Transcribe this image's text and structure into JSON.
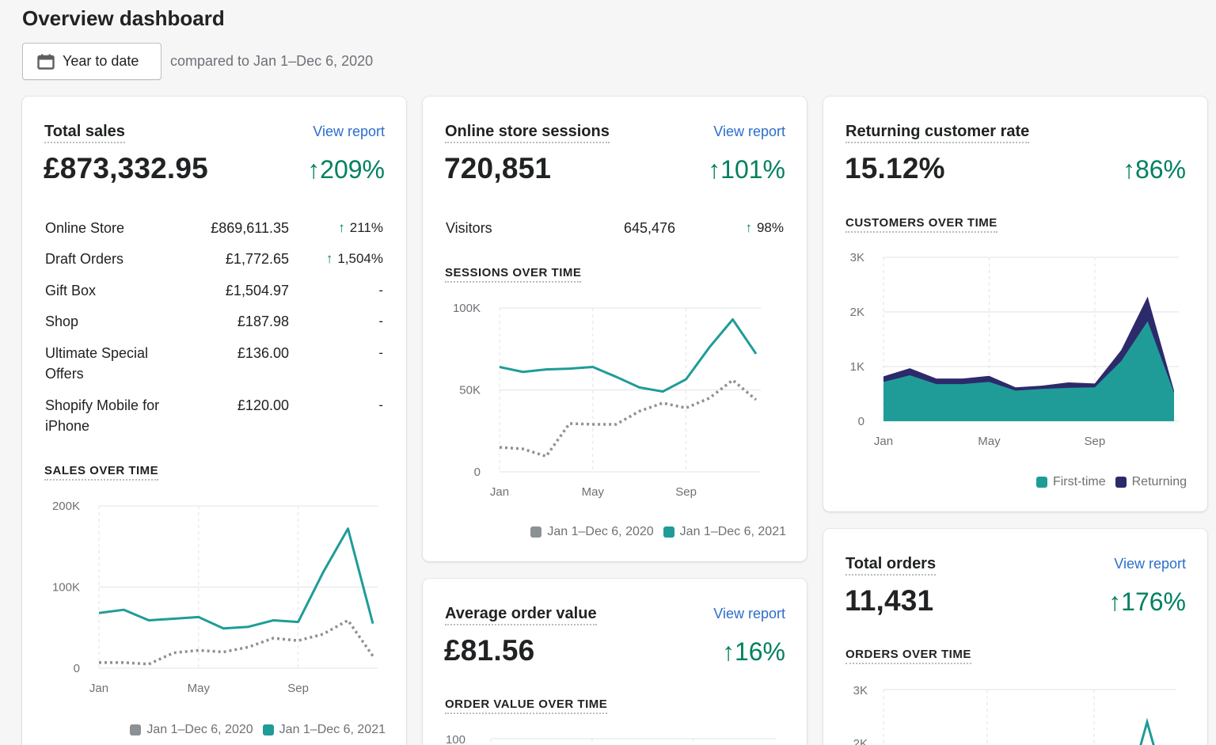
{
  "header": {
    "title": "Overview dashboard",
    "date_button": "Year to date",
    "compare": "compared to Jan 1–Dec 6, 2020"
  },
  "colors": {
    "current": "#1f9c98",
    "previous": "#8c9196",
    "returning": "#2c2a6b",
    "positive": "#008060",
    "link": "#2c6ecb"
  },
  "total_sales": {
    "title": "Total sales",
    "link": "View report",
    "value": "£873,332.95",
    "delta": "↑209%",
    "rows": [
      {
        "label": "Online Store",
        "value": "£869,611.35",
        "delta": "211%",
        "arrow": "↑"
      },
      {
        "label": "Draft Orders",
        "value": "£1,772.65",
        "delta": "1,504%",
        "arrow": "↑"
      },
      {
        "label": "Gift Box",
        "value": "£1,504.97",
        "delta": "-",
        "arrow": ""
      },
      {
        "label": "Shop",
        "value": "£187.98",
        "delta": "-",
        "arrow": ""
      },
      {
        "label": "Ultimate Special Offers",
        "value": "£136.00",
        "delta": "-",
        "arrow": ""
      },
      {
        "label": "Shopify Mobile for iPhone",
        "value": "£120.00",
        "delta": "-",
        "arrow": ""
      }
    ],
    "chart_label": "SALES OVER TIME",
    "legend": [
      "Jan 1–Dec 6, 2020",
      "Jan 1–Dec 6, 2021"
    ]
  },
  "sessions": {
    "title": "Online store sessions",
    "link": "View report",
    "value": "720,851",
    "delta": "↑101%",
    "row": {
      "label": "Visitors",
      "value": "645,476",
      "delta": "98%",
      "arrow": "↑"
    },
    "chart_label": "SESSIONS OVER TIME",
    "legend": [
      "Jan 1–Dec 6, 2020",
      "Jan 1–Dec 6, 2021"
    ]
  },
  "avg_order": {
    "title": "Average order value",
    "link": "View report",
    "value": "£81.56",
    "delta": "↑16%",
    "chart_label": "ORDER VALUE OVER TIME",
    "tick_top": "100"
  },
  "returning": {
    "title": "Returning customer rate",
    "value": "15.12%",
    "delta": "↑86%",
    "chart_label": "CUSTOMERS OVER TIME",
    "legend": [
      "First-time",
      "Returning"
    ]
  },
  "orders": {
    "title": "Total orders",
    "link": "View report",
    "value": "11,431",
    "delta": "↑176%",
    "chart_label": "ORDERS OVER TIME",
    "ticks": [
      "3K",
      "2K"
    ]
  },
  "chart_data": [
    {
      "id": "sales",
      "type": "line",
      "x": [
        "Jan",
        "Feb",
        "Mar",
        "Apr",
        "May",
        "Jun",
        "Jul",
        "Aug",
        "Sep",
        "Oct",
        "Nov",
        "Dec"
      ],
      "x_ticks": [
        "Jan",
        "May",
        "Sep"
      ],
      "y_ticks": [
        "200K",
        "100K",
        "0"
      ],
      "ylim": [
        0,
        200000
      ],
      "series": [
        {
          "name": "Jan 1–Dec 6, 2021",
          "style": "solid",
          "values": [
            68000,
            72000,
            59000,
            61000,
            63000,
            49000,
            51000,
            59000,
            57000,
            118000,
            172000,
            55000
          ]
        },
        {
          "name": "Jan 1–Dec 6, 2020",
          "style": "dotted",
          "values": [
            7000,
            7000,
            5000,
            19000,
            22000,
            20000,
            26000,
            37000,
            34000,
            42000,
            59000,
            15000
          ]
        }
      ]
    },
    {
      "id": "sessions",
      "type": "line",
      "x": [
        "Jan",
        "Feb",
        "Mar",
        "Apr",
        "May",
        "Jun",
        "Jul",
        "Aug",
        "Sep",
        "Oct",
        "Nov",
        "Dec"
      ],
      "x_ticks": [
        "Jan",
        "May",
        "Sep"
      ],
      "y_ticks": [
        "100K",
        "50K",
        "0"
      ],
      "ylim": [
        0,
        100000
      ],
      "series": [
        {
          "name": "Jan 1–Dec 6, 2021",
          "style": "solid",
          "values": [
            64000,
            61000,
            62500,
            63000,
            64000,
            58000,
            51500,
            49000,
            56500,
            76000,
            93000,
            72000
          ]
        },
        {
          "name": "Jan 1–Dec 6, 2020",
          "style": "dotted",
          "values": [
            15000,
            14000,
            9500,
            29500,
            29000,
            29000,
            37000,
            42000,
            39000,
            45000,
            56000,
            44000
          ]
        }
      ]
    },
    {
      "id": "customers",
      "type": "area",
      "x": [
        "Jan",
        "Feb",
        "Mar",
        "Apr",
        "May",
        "Jun",
        "Jul",
        "Aug",
        "Sep",
        "Oct",
        "Nov",
        "Dec"
      ],
      "x_ticks": [
        "Jan",
        "May",
        "Sep"
      ],
      "y_ticks": [
        "3K",
        "2K",
        "1K",
        "0"
      ],
      "ylim": [
        0,
        3000
      ],
      "series": [
        {
          "name": "First-time",
          "values": [
            720,
            840,
            680,
            680,
            720,
            560,
            590,
            610,
            620,
            1100,
            1830,
            520
          ]
        },
        {
          "name": "Returning",
          "values": [
            100,
            130,
            100,
            100,
            110,
            60,
            60,
            100,
            70,
            200,
            450,
            40
          ]
        }
      ]
    }
  ]
}
